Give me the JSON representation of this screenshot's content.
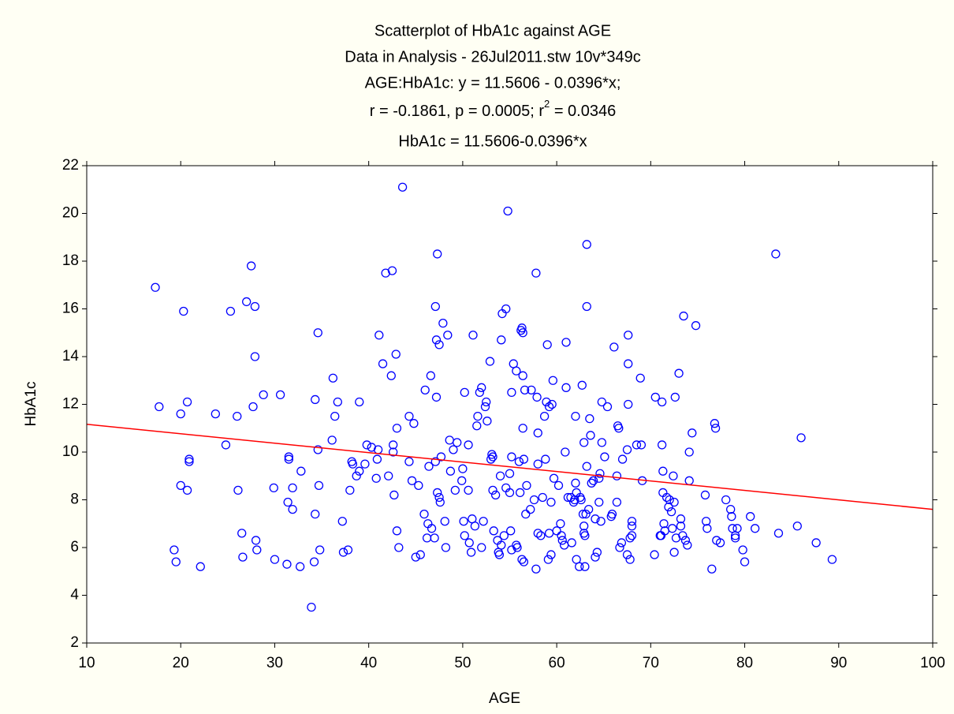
{
  "chart_data": {
    "type": "scatter",
    "title": "Scatterplot of HbA1c against AGE",
    "subtitle": [
      "Data in Analysis - 26Jul2011.stw 10v*349c",
      "AGE:HbA1c:   y = 11.5606 - 0.0396*x;"
    ],
    "stats": {
      "text": "r = -0.1861, p = 0.0005; r",
      "sup": "2",
      "tail": " = 0.0346"
    },
    "equation": "HbA1c = 11.5606-0.0396*x",
    "x_label": "AGE",
    "y_label": "HbA1c",
    "xlim": [
      10,
      100
    ],
    "xticks": [
      10,
      20,
      30,
      40,
      50,
      60,
      70,
      80,
      90,
      100
    ],
    "ylim": [
      2,
      22
    ],
    "yticks": [
      2,
      4,
      6,
      8,
      10,
      12,
      14,
      16,
      18,
      20,
      22
    ],
    "grid": false,
    "color": "#0000ff",
    "fit": {
      "intercept": 11.5606,
      "slope": -0.0396,
      "color": "#ff0000"
    },
    "x": [
      17.3,
      17.7,
      19.3,
      19.5,
      20,
      20,
      20.3,
      20.7,
      20.7,
      20.9,
      20.9,
      22.1,
      23.7,
      24.8,
      25.3,
      26,
      26.1,
      26.5,
      26.6,
      27,
      27.5,
      27.7,
      27.9,
      27.9,
      28,
      28.1,
      28.8,
      29.9,
      30,
      30.6,
      31.3,
      31.4,
      31.5,
      31.5,
      31.9,
      31.9,
      32.7,
      32.8,
      33.9,
      34.2,
      34.3,
      34.3,
      34.6,
      34.6,
      34.7,
      34.8,
      36.1,
      36.2,
      36.4,
      36.7,
      37.2,
      37.3,
      37.8,
      38,
      38.2,
      38.3,
      38.7,
      39,
      39,
      39.6,
      39.8,
      40.3,
      40.8,
      40.9,
      41,
      41.1,
      41.5,
      41.8,
      42.1,
      42.4,
      42.5,
      42.6,
      42.6,
      42.7,
      42.9,
      43,
      43,
      43.2,
      43.6,
      44.3,
      44.3,
      44.6,
      44.8,
      45,
      45.3,
      45.5,
      45.9,
      46,
      46.2,
      46.3,
      46.4,
      46.6,
      46.7,
      47,
      47.1,
      47.1,
      47.2,
      47.2,
      47.3,
      47.3,
      47.5,
      47.5,
      47.6,
      47.7,
      47.9,
      48.1,
      48.2,
      48.4,
      48.6,
      48.7,
      49,
      49.2,
      49.4,
      49.9,
      50,
      50.1,
      50.2,
      50.2,
      50.6,
      50.6,
      50.7,
      50.9,
      51,
      51.1,
      51.3,
      51.5,
      51.6,
      51.8,
      52,
      52,
      52.2,
      52.4,
      52.5,
      52.6,
      52.9,
      53,
      53.1,
      53.2,
      53.2,
      53.3,
      53.5,
      53.7,
      53.8,
      53.9,
      54.1,
      54,
      54.1,
      54.2,
      54.4,
      54.6,
      54.6,
      54.8,
      55,
      55,
      55.1,
      55.2,
      55.2,
      55.2,
      55.4,
      55.7,
      55.7,
      55.8,
      56,
      56.1,
      56.2,
      56.3,
      56.3,
      56.4,
      56.4,
      56.4,
      56.5,
      56.5,
      56.6,
      56.7,
      56.8,
      57.2,
      57.3,
      57.6,
      57.8,
      57.8,
      57.9,
      58,
      58,
      58,
      58.3,
      58.5,
      58.7,
      58.8,
      58.9,
      59,
      59.1,
      59.2,
      59.2,
      59.4,
      59.4,
      59.5,
      59.6,
      59.7,
      60,
      60.2,
      60.4,
      60.5,
      60.6,
      60.8,
      60.9,
      61,
      61,
      61.2,
      61.5,
      61.6,
      61.8,
      61.9,
      62,
      62,
      62.1,
      62.1,
      62.4,
      62.5,
      62.6,
      62.7,
      62.8,
      62.9,
      62.9,
      62.9,
      63,
      63,
      63.1,
      63.2,
      63.2,
      63.2,
      63.4,
      63.5,
      63.6,
      63.7,
      63.9,
      64.1,
      64.1,
      64.3,
      64.5,
      64.5,
      64.6,
      64.7,
      64.8,
      64.8,
      65.1,
      65.4,
      65.8,
      65.9,
      66.1,
      66.4,
      66.4,
      66.5,
      66.6,
      66.7,
      66.9,
      67,
      67.5,
      67.5,
      67.6,
      67.6,
      67.6,
      67.8,
      67.8,
      68,
      68,
      68,
      68.5,
      68.9,
      69,
      69.1,
      70.4,
      70.5,
      71,
      71.1,
      71.2,
      71.2,
      71.3,
      71.3,
      71.4,
      71.5,
      71.7,
      71.9,
      72,
      72.2,
      72.3,
      72.4,
      72.5,
      72.5,
      72.6,
      72.7,
      73,
      73.2,
      73.2,
      73.4,
      73.5,
      73.7,
      73.9,
      74.1,
      74.1,
      74.4,
      74.8,
      75.8,
      75.9,
      76,
      76.5,
      76.8,
      76.9,
      77,
      77.4,
      78,
      78.5,
      78.6,
      78.7,
      79,
      79,
      79.2,
      79.8,
      80,
      80.6,
      81.1,
      83.3,
      83.6,
      85.6,
      86,
      87.6,
      89.3
    ],
    "values": [
      16.9,
      11.9,
      5.9,
      5.4,
      8.6,
      11.6,
      15.9,
      12.1,
      8.4,
      9.6,
      9.7,
      5.2,
      11.6,
      10.3,
      15.9,
      11.5,
      8.4,
      6.6,
      5.6,
      16.3,
      17.8,
      11.9,
      16.1,
      14,
      6.3,
      5.9,
      12.4,
      8.5,
      5.5,
      12.4,
      5.3,
      7.9,
      9.8,
      9.7,
      8.5,
      7.6,
      5.2,
      9.2,
      3.5,
      5.4,
      12.2,
      7.4,
      15,
      10.1,
      8.6,
      5.9,
      10.5,
      13.1,
      11.5,
      12.1,
      7.1,
      5.8,
      5.9,
      8.4,
      9.6,
      9.5,
      9,
      12.1,
      9.2,
      9.5,
      10.3,
      10.2,
      8.9,
      9.7,
      10.1,
      14.9,
      13.7,
      17.5,
      9,
      13.2,
      17.6,
      10,
      10.3,
      8.2,
      14.1,
      11,
      6.7,
      6,
      21.1,
      9.6,
      11.5,
      8.8,
      11.2,
      5.6,
      8.6,
      5.7,
      7.4,
      12.6,
      6.4,
      7,
      9.4,
      13.2,
      6.8,
      6.4,
      9.6,
      16.1,
      14.7,
      12.3,
      18.3,
      8.3,
      14.5,
      8.1,
      7.9,
      9.8,
      15.4,
      7.1,
      6,
      14.9,
      10.5,
      9.2,
      10.1,
      8.4,
      10.4,
      8.8,
      9.3,
      7.1,
      12.5,
      6.5,
      10.3,
      8.4,
      6.2,
      5.8,
      7.2,
      14.9,
      6.9,
      11.1,
      11.5,
      12.5,
      12.7,
      6,
      7.1,
      11.9,
      12.1,
      11.3,
      13.8,
      9.7,
      9.9,
      9.8,
      8.4,
      6.7,
      8.2,
      6.3,
      5.8,
      5.7,
      14.7,
      9,
      6.1,
      15.8,
      6.5,
      8.5,
      16,
      20.1,
      8.3,
      9.1,
      6.7,
      9.8,
      5.9,
      12.5,
      13.7,
      13.4,
      6.1,
      6,
      9.6,
      8.3,
      15.1,
      15.2,
      5.5,
      15,
      13.2,
      11,
      9.7,
      5.4,
      12.6,
      7.4,
      8.6,
      7.6,
      12.6,
      8,
      5.1,
      17.5,
      12.3,
      6.6,
      10.8,
      9.5,
      6.5,
      8.1,
      11.5,
      9.7,
      12.1,
      14.5,
      5.5,
      6.6,
      11.9,
      7.9,
      5.7,
      12,
      13,
      8.9,
      6.7,
      8.6,
      7,
      6.5,
      6.3,
      6.1,
      10,
      12.7,
      14.6,
      8.1,
      8.1,
      6.2,
      7.9,
      8,
      8.7,
      11.5,
      8.3,
      5.5,
      5.2,
      8.1,
      8,
      12.8,
      7.4,
      10.4,
      6.9,
      6.6,
      5.2,
      6.5,
      7.4,
      16.1,
      18.7,
      9.4,
      7.6,
      11.4,
      10.7,
      8.7,
      8.8,
      5.6,
      7.2,
      5.8,
      7.9,
      8.9,
      9.1,
      7.1,
      10.4,
      12.1,
      9.8,
      11.9,
      7.3,
      7.4,
      14.4,
      9,
      7.9,
      11.1,
      11,
      6,
      6.2,
      9.7,
      10.1,
      5.7,
      14.9,
      13.7,
      12,
      5.5,
      6.4,
      6.5,
      7.1,
      6.9,
      10.3,
      13.1,
      10.3,
      8.8,
      5.7,
      12.3,
      6.5,
      6.5,
      10.3,
      12.1,
      8.3,
      9.2,
      7,
      6.7,
      8.1,
      7.7,
      8,
      7.5,
      6.8,
      9,
      7.9,
      5.8,
      12.3,
      6.4,
      13.3,
      6.9,
      7.2,
      6.5,
      15.7,
      6.3,
      6.1,
      10,
      8.8,
      10.8,
      15.3,
      8.2,
      7.1,
      6.8,
      5.1,
      11.2,
      11,
      6.3,
      6.2,
      8,
      7.6,
      7.3,
      6.8,
      6.5,
      6.4,
      6.8,
      5.9,
      5.4,
      7.3,
      6.8,
      18.3,
      6.6,
      6.9,
      10.6,
      6.2,
      5.5
    ]
  }
}
